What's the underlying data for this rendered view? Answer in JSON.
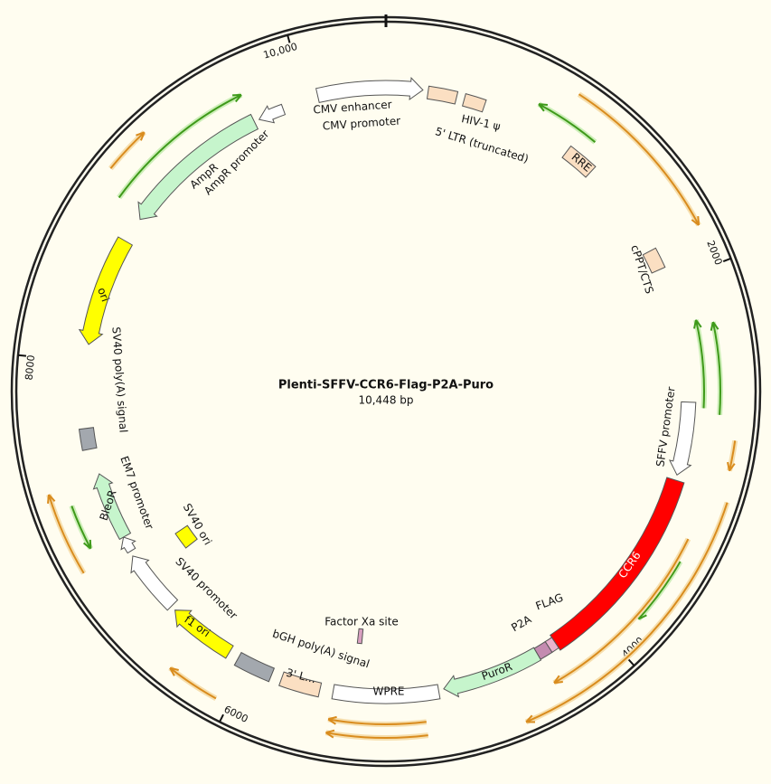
{
  "title": "Plenti-SFFV-CCR6-Flag-P2A-Puro",
  "length": {
    "value": 10448,
    "label": "10,448 bp"
  },
  "ticks": [
    {
      "value": 2000,
      "label": "2000"
    },
    {
      "value": 4000,
      "label": "4000"
    },
    {
      "value": 6000,
      "label": "6000"
    },
    {
      "value": 8000,
      "label": "8000"
    },
    {
      "value": 10000,
      "label": "10,000"
    }
  ],
  "features": [
    {
      "labels": [
        "CMV enhancer",
        "CMV promoter"
      ]
    },
    {
      "labels": [
        "5' LTR (truncated)"
      ]
    },
    {
      "labels": [
        "HIV-1 ψ"
      ]
    },
    {
      "labels": [
        "RRE"
      ]
    },
    {
      "labels": [
        "cPPT/CTS"
      ]
    },
    {
      "labels": [
        "SFFV promoter"
      ]
    },
    {
      "labels": [
        "CCR6"
      ]
    },
    {
      "labels": [
        "FLAG"
      ]
    },
    {
      "labels": [
        "P2A"
      ]
    },
    {
      "labels": [
        "PuroR"
      ]
    },
    {
      "labels": [
        "WPRE"
      ]
    },
    {
      "labels": [
        "3' L…"
      ]
    },
    {
      "labels": [
        "bGH poly(A) signal"
      ]
    },
    {
      "labels": [
        "f1 ori"
      ]
    },
    {
      "labels": [
        "SV40 promoter"
      ]
    },
    {
      "labels": [
        "EM7 promoter"
      ]
    },
    {
      "labels": [
        "BleoR"
      ]
    },
    {
      "labels": [
        "SV40 poly(A) signal"
      ]
    },
    {
      "labels": [
        "ori"
      ]
    },
    {
      "labels": [
        "AmpR",
        "AmpR promoter"
      ]
    },
    {
      "labels": []
    },
    {
      "labels": [
        "SV40 ori"
      ]
    },
    {
      "labels": [
        "Factor Xa site"
      ]
    }
  ]
}
